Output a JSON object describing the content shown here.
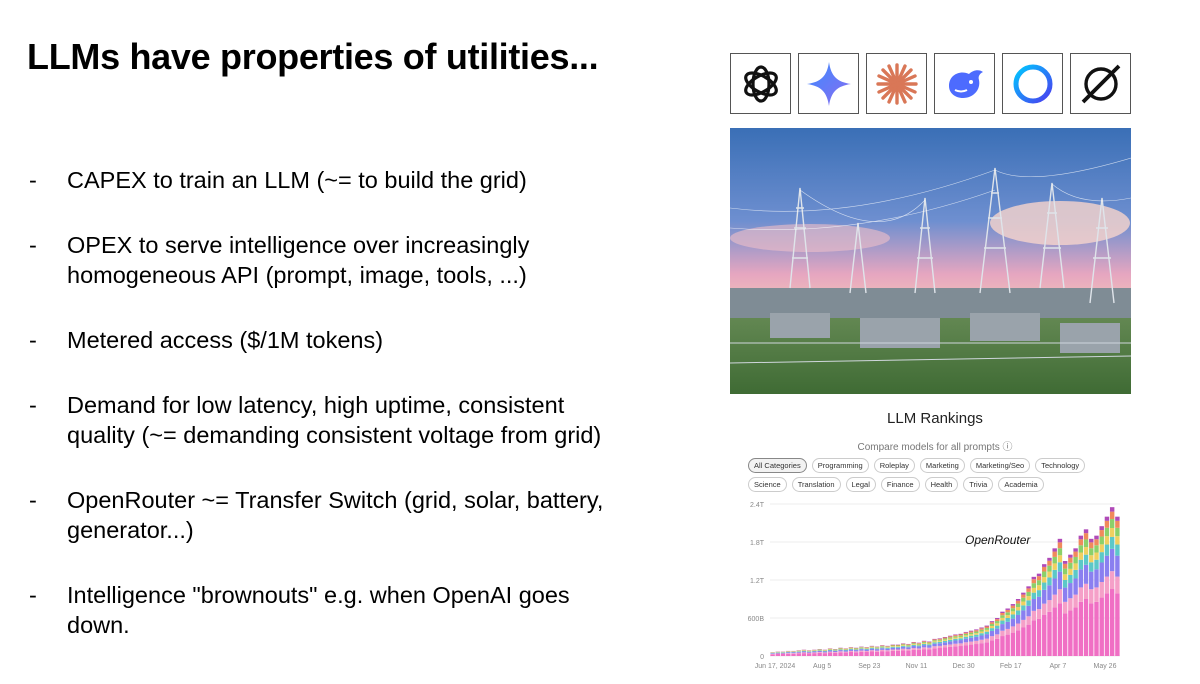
{
  "slide": {
    "title": "LLMs have properties of utilities...",
    "bullets": [
      [
        "CAPEX to train an LLM (~= to build the grid)"
      ],
      [
        "OPEX to serve intelligence over increasingly",
        "homogeneous API (prompt, image, tools, ...)"
      ],
      [
        "Metered access ($/1M tokens)"
      ],
      [
        "Demand for low latency, high uptime, consistent",
        "quality (~= demanding consistent voltage from grid)"
      ],
      [
        "OpenRouter ~= Transfer Switch (grid, solar, battery,",
        "generator...)"
      ],
      [
        "Intelligence \"brownouts\" e.g. when OpenAI goes",
        "down."
      ]
    ],
    "dash": "-"
  },
  "logos": [
    {
      "icon": "openai-logo-icon",
      "color": "#000000"
    },
    {
      "icon": "gemini-logo-icon",
      "color": "#4a7df0"
    },
    {
      "icon": "claude-logo-icon",
      "color": "#d97757"
    },
    {
      "icon": "deepseek-logo-icon",
      "color": "#4d6bfe"
    },
    {
      "icon": "meta-ring-logo-icon",
      "color": "#2f6bff"
    },
    {
      "icon": "grok-logo-icon",
      "color": "#000000"
    }
  ],
  "rankings": {
    "title": "LLM Rankings",
    "subtitle": "Compare models for all prompts ⓘ",
    "categories": [
      "All Categories",
      "Programming",
      "Roleplay",
      "Marketing",
      "Marketing/Seo",
      "Technology",
      "Science",
      "Translation",
      "Legal",
      "Finance",
      "Health",
      "Trivia",
      "Academia"
    ],
    "active_category": "All Categories"
  },
  "chart_data": {
    "type": "bar",
    "stacked": true,
    "annotation": "OpenRouter",
    "y_ticks": [
      "0",
      "600B",
      "1.2T",
      "1.8T",
      "2.4T"
    ],
    "x_ticks": [
      "Jun 17, 2024",
      "Aug 5",
      "Sep 23",
      "Nov 11",
      "Dec 30",
      "Feb 17",
      "Apr 7",
      "May 26"
    ],
    "ylim": [
      0,
      2.4
    ],
    "y_unit": "trillion tokens",
    "totals": [
      0.06,
      0.07,
      0.07,
      0.08,
      0.08,
      0.09,
      0.1,
      0.09,
      0.1,
      0.11,
      0.1,
      0.12,
      0.11,
      0.13,
      0.12,
      0.14,
      0.13,
      0.15,
      0.14,
      0.16,
      0.15,
      0.17,
      0.16,
      0.18,
      0.18,
      0.2,
      0.19,
      0.22,
      0.21,
      0.24,
      0.23,
      0.27,
      0.28,
      0.3,
      0.32,
      0.34,
      0.35,
      0.38,
      0.4,
      0.42,
      0.45,
      0.48,
      0.55,
      0.6,
      0.7,
      0.75,
      0.82,
      0.9,
      1.0,
      1.1,
      1.25,
      1.3,
      1.45,
      1.55,
      1.7,
      1.85,
      1.5,
      1.6,
      1.7,
      1.9,
      2.0,
      1.85,
      1.9,
      2.05,
      2.2,
      2.35,
      2.2
    ],
    "series_colors": [
      "#f06fc4",
      "#f5a0c8",
      "#8a7ff0",
      "#5cc8c8",
      "#f0d060",
      "#8bd06a",
      "#f08a5c",
      "#b04ab8"
    ]
  }
}
